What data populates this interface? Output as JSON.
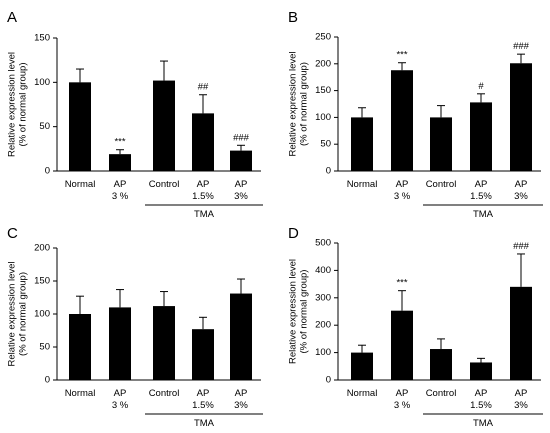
{
  "chart_data": [
    {
      "panel": "A",
      "type": "bar",
      "ylabel": [
        "Relative expression level",
        "(% of normal group)"
      ],
      "ylim": [
        0,
        150
      ],
      "yticks": [
        0,
        50,
        100,
        150
      ],
      "categories": [
        [
          "Normal"
        ],
        [
          "AP",
          "3 %"
        ],
        [
          "Control"
        ],
        [
          "AP",
          "1.5%"
        ],
        [
          "AP",
          "3%"
        ]
      ],
      "values": [
        100,
        19,
        102,
        65,
        23
      ],
      "errors": [
        15,
        5,
        22,
        21,
        6
      ],
      "annotations": [
        "",
        "***",
        "",
        "##",
        "###"
      ],
      "group_label": "TMA"
    },
    {
      "panel": "B",
      "type": "bar",
      "ylabel": [
        "Relative expression level",
        "(% of normal group)"
      ],
      "ylim": [
        0,
        250
      ],
      "yticks": [
        0,
        50,
        100,
        150,
        200,
        250
      ],
      "categories": [
        [
          "Normal"
        ],
        [
          "AP",
          "3 %"
        ],
        [
          "Control"
        ],
        [
          "AP",
          "1.5%"
        ],
        [
          "AP",
          "3%"
        ]
      ],
      "values": [
        100,
        188,
        100,
        128,
        201
      ],
      "errors": [
        18,
        14,
        22,
        16,
        17
      ],
      "annotations": [
        "",
        "***",
        "",
        "#",
        "###"
      ],
      "group_label": "TMA"
    },
    {
      "panel": "C",
      "type": "bar",
      "ylabel": [
        "Relative expression level",
        "(% of normal group)"
      ],
      "ylim": [
        0,
        200
      ],
      "yticks": [
        0,
        50,
        100,
        150,
        200
      ],
      "categories": [
        [
          "Normal"
        ],
        [
          "AP",
          "3 %"
        ],
        [
          "Control"
        ],
        [
          "AP",
          "1.5%"
        ],
        [
          "AP",
          "3%"
        ]
      ],
      "values": [
        100,
        110,
        112,
        77,
        131
      ],
      "errors": [
        27,
        27,
        22,
        18,
        22
      ],
      "annotations": [
        "",
        "",
        "",
        "",
        ""
      ],
      "group_label": "TMA"
    },
    {
      "panel": "D",
      "type": "bar",
      "ylabel": [
        "Relative expression level",
        "(% of normal group)"
      ],
      "ylim": [
        0,
        500
      ],
      "yticks": [
        0,
        100,
        200,
        300,
        400,
        500
      ],
      "categories": [
        [
          "Normal"
        ],
        [
          "AP",
          "3 %"
        ],
        [
          "Control"
        ],
        [
          "AP",
          "1.5%"
        ],
        [
          "AP",
          "3%"
        ]
      ],
      "values": [
        100,
        253,
        113,
        64,
        340
      ],
      "errors": [
        27,
        73,
        37,
        15,
        120
      ],
      "annotations": [
        "",
        "***",
        "",
        "",
        "###"
      ],
      "group_label": "TMA"
    }
  ]
}
